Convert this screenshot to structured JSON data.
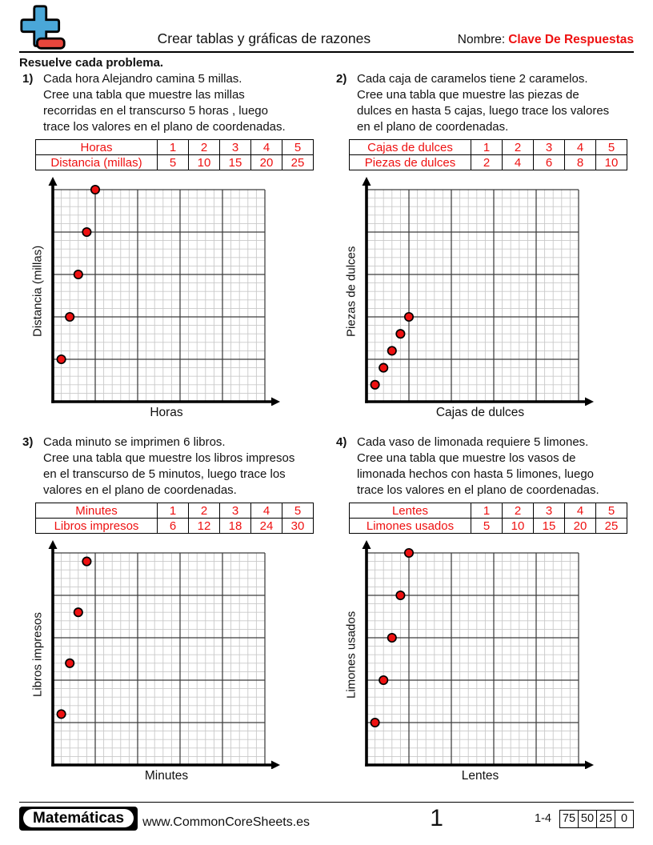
{
  "header": {
    "title": "Crear tablas y gráficas de razones",
    "name_label": "Nombre:",
    "name_value": "Clave De Respuestas",
    "logo_icon": "plus-math-icon"
  },
  "instruction": "Resuelve cada problema.",
  "colors": {
    "accent_red": "#ee1111",
    "logo_blue": "#4aa7d8",
    "logo_red": "#e8463c",
    "grid_minor": "#c9c9c9",
    "grid_major": "#3c3c3c",
    "axis_black": "#000000",
    "point_fill": "#ee1111"
  },
  "problems": [
    {
      "number": "1)",
      "text_lines": [
        "Cada hora Alejandro camina 5 millas.",
        "Cree una tabla que muestre las millas",
        "recorridas en el transcurso 5 horas , luego",
        "trace los valores en el plano de coordenadas."
      ],
      "table": {
        "rows": [
          {
            "label": "Horas",
            "values": [
              "1",
              "2",
              "3",
              "4",
              "5"
            ]
          },
          {
            "label": "Distancia (millas)",
            "values": [
              "5",
              "10",
              "15",
              "20",
              "25"
            ]
          }
        ]
      }
    },
    {
      "number": "2)",
      "text_lines": [
        "Cada caja de caramelos tiene 2 caramelos.",
        "Cree una tabla que muestre las piezas de",
        "dulces en hasta 5 cajas, luego trace los valores",
        "en el plano de coordenadas."
      ],
      "table": {
        "rows": [
          {
            "label": "Cajas de dulces",
            "values": [
              "1",
              "2",
              "3",
              "4",
              "5"
            ]
          },
          {
            "label": "Piezas de dulces",
            "values": [
              "2",
              "4",
              "6",
              "8",
              "10"
            ]
          }
        ]
      }
    },
    {
      "number": "3)",
      "text_lines": [
        "Cada minuto se imprimen 6 libros.",
        "Cree una tabla que muestre los libros impresos",
        "en el transcurso de 5 minutos, luego trace los",
        "valores en el plano de coordenadas."
      ],
      "table": {
        "rows": [
          {
            "label": "Minutes",
            "values": [
              "1",
              "2",
              "3",
              "4",
              "5"
            ]
          },
          {
            "label": "Libros impresos",
            "values": [
              "6",
              "12",
              "18",
              "24",
              "30"
            ]
          }
        ]
      }
    },
    {
      "number": "4)",
      "text_lines": [
        "Cada vaso de limonada requiere 5 limones.",
        "Cree una tabla que muestre los vasos de",
        "limonada hechos con hasta 5 limones, luego",
        "trace los valores en el plano de coordenadas."
      ],
      "table": {
        "rows": [
          {
            "label": "Lentes",
            "values": [
              "1",
              "2",
              "3",
              "4",
              "5"
            ]
          },
          {
            "label": "Limones usados",
            "values": [
              "5",
              "10",
              "15",
              "20",
              "25"
            ]
          }
        ]
      }
    }
  ],
  "chart_data": [
    {
      "type": "scatter",
      "xlabel": "Horas",
      "ylabel": "Distancia (millas)",
      "xlim": [
        0,
        25
      ],
      "ylim": [
        0,
        25
      ],
      "grid": {
        "minor_step": 1,
        "major_step": 5
      },
      "points": [
        [
          1,
          5
        ],
        [
          2,
          10
        ],
        [
          3,
          15
        ],
        [
          4,
          20
        ],
        [
          5,
          25
        ]
      ]
    },
    {
      "type": "scatter",
      "xlabel": "Cajas de dulces",
      "ylabel": "Piezas de dulces",
      "xlim": [
        0,
        25
      ],
      "ylim": [
        0,
        25
      ],
      "grid": {
        "minor_step": 1,
        "major_step": 5
      },
      "points": [
        [
          1,
          2
        ],
        [
          2,
          4
        ],
        [
          3,
          6
        ],
        [
          4,
          8
        ],
        [
          5,
          10
        ]
      ]
    },
    {
      "type": "scatter",
      "xlabel": "Minutes",
      "ylabel": "Libros impresos",
      "xlim": [
        0,
        25
      ],
      "ylim": [
        0,
        25
      ],
      "grid": {
        "minor_step": 1,
        "major_step": 5
      },
      "points": [
        [
          1,
          6
        ],
        [
          2,
          12
        ],
        [
          3,
          18
        ],
        [
          4,
          24
        ]
      ]
    },
    {
      "type": "scatter",
      "xlabel": "Lentes",
      "ylabel": "Limones usados",
      "xlim": [
        0,
        25
      ],
      "ylim": [
        0,
        25
      ],
      "grid": {
        "minor_step": 1,
        "major_step": 5
      },
      "points": [
        [
          1,
          5
        ],
        [
          2,
          10
        ],
        [
          3,
          15
        ],
        [
          4,
          20
        ],
        [
          5,
          25
        ]
      ]
    }
  ],
  "footer": {
    "brand": "Matemáticas",
    "url": "www.CommonCoreSheets.es",
    "page_number": "1",
    "range_label": "1-4",
    "scores": [
      "75",
      "50",
      "25",
      "0"
    ]
  }
}
